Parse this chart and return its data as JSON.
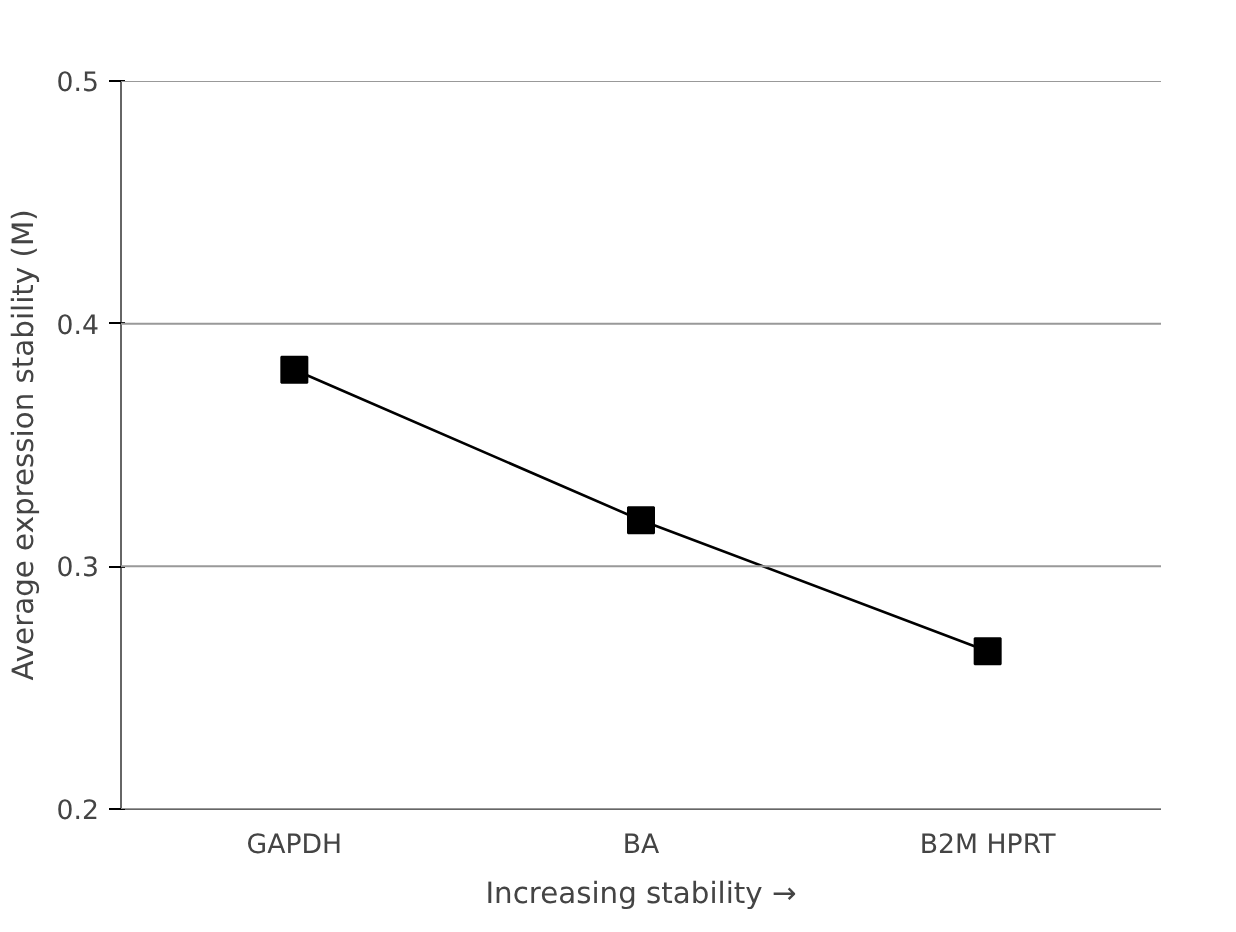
{
  "chart_data": {
    "type": "line",
    "categories": [
      "GAPDH",
      "BA",
      "B2M HPRT"
    ],
    "values": [
      0.381,
      0.319,
      0.265
    ],
    "color": "#000000",
    "marker": "square",
    "line_style": "solid",
    "ylim": [
      0.2,
      0.5
    ],
    "yticks": [
      0.2,
      0.3,
      0.4,
      0.5
    ],
    "grid": "y",
    "xlabel": "Increasing stability →",
    "ylabel": "Average expression stability (M)"
  }
}
